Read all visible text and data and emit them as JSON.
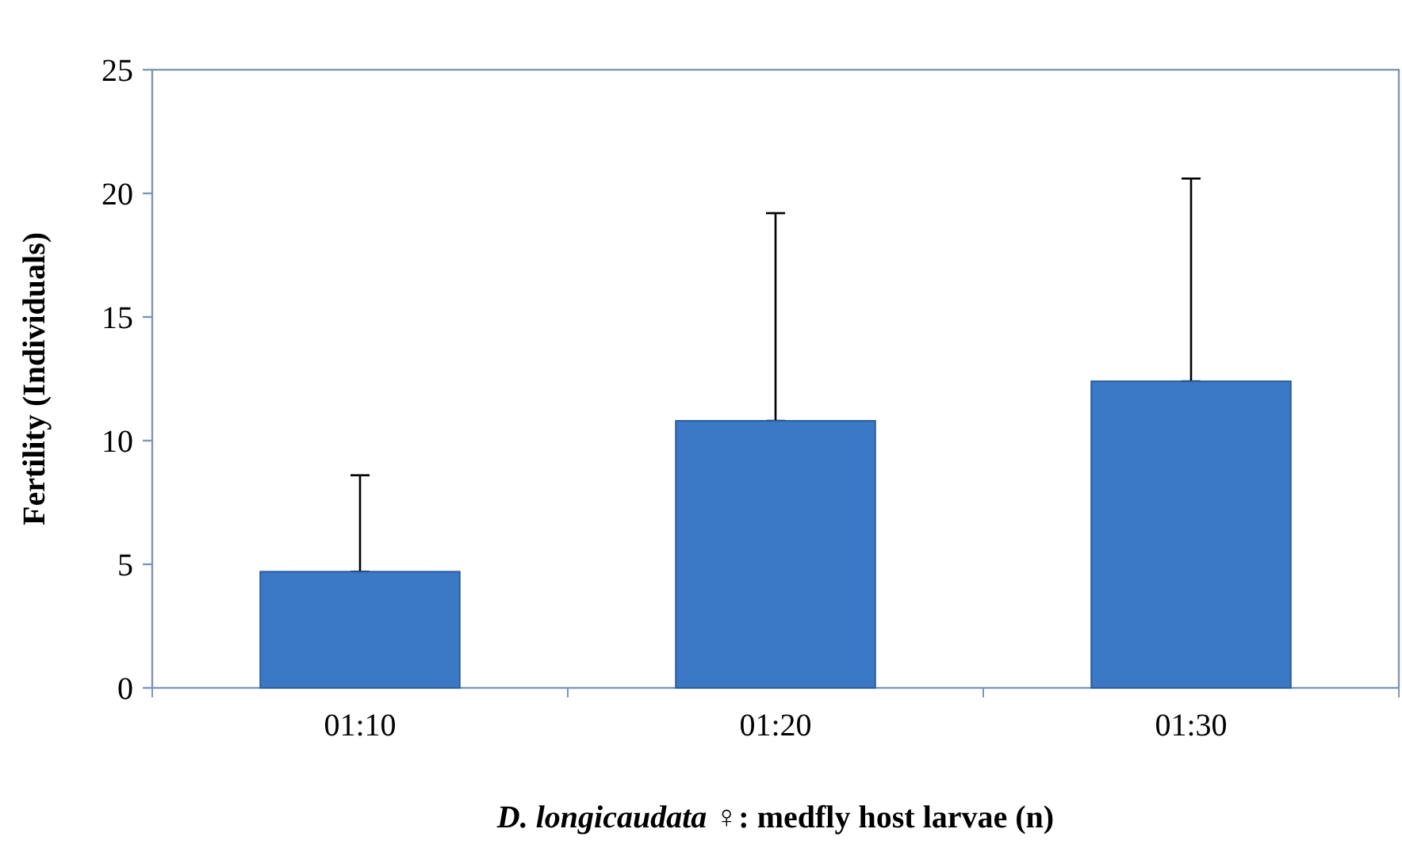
{
  "chart_data": {
    "type": "bar",
    "xlabel": "D. longicaudata ♀: medfly host larvae (n)",
    "ylabel": "Fertility (Individuals)",
    "categories": [
      "01:10",
      "01:20",
      "01:30"
    ],
    "values": [
      4.7,
      10.8,
      12.4
    ],
    "errors": [
      [
        4.7,
        8.6
      ],
      [
        10.8,
        19.2
      ],
      [
        12.4,
        20.6
      ]
    ],
    "color": "#3b78c6",
    "ylim": [
      0,
      25
    ],
    "yticks": [
      0,
      5,
      10,
      15,
      20,
      25
    ],
    "grid": false
  }
}
